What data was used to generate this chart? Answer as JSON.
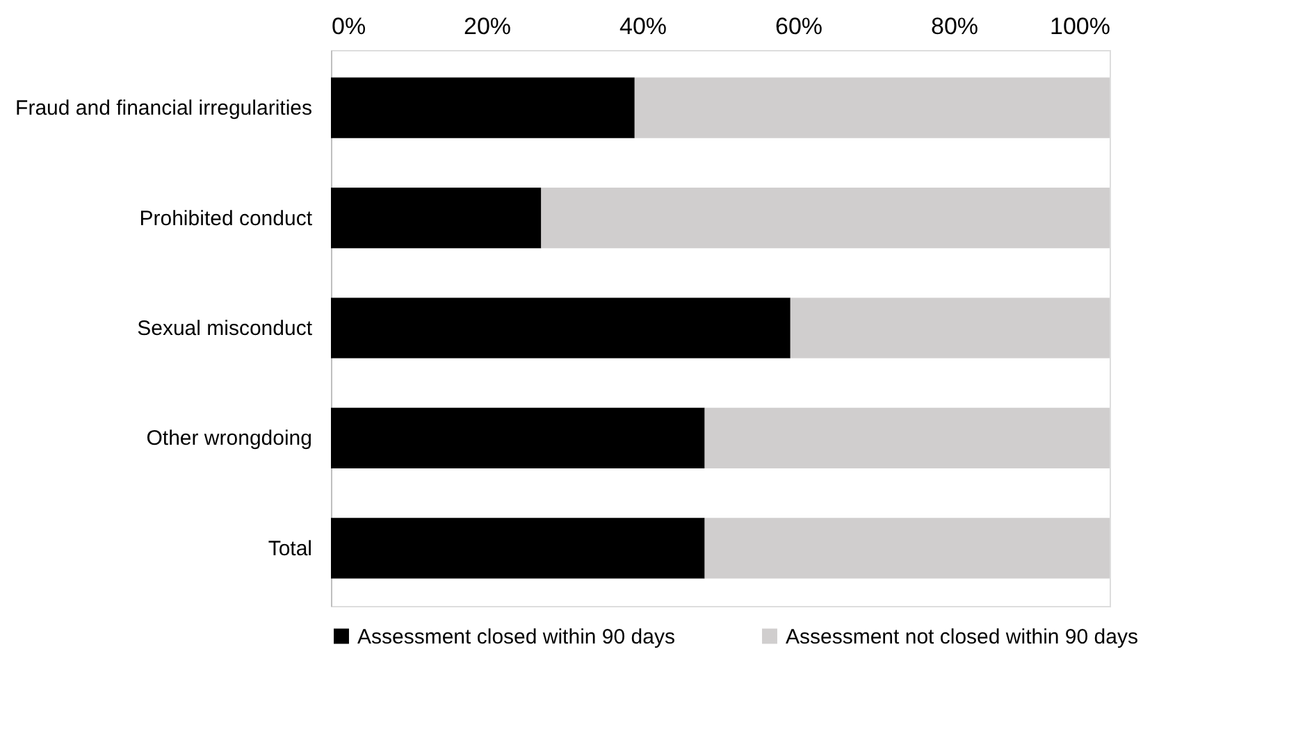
{
  "chart_data": {
    "type": "bar",
    "orientation": "horizontal",
    "stacked": true,
    "categories": [
      "Fraud and financial irregularities",
      "Prohibited conduct",
      "Sexual misconduct",
      "Other wrongdoing",
      "Total"
    ],
    "series": [
      {
        "name": "Assessment closed within 90 days",
        "color": "#000000",
        "values": [
          39,
          27,
          59,
          48,
          48
        ]
      },
      {
        "name": "Assessment not closed within 90 days",
        "color": "#d0cece",
        "values": [
          61,
          73,
          41,
          52,
          52
        ]
      }
    ],
    "xlim": [
      0,
      100
    ],
    "xticks": [
      {
        "value": 0,
        "label": "0%"
      },
      {
        "value": 20,
        "label": "20%"
      },
      {
        "value": 40,
        "label": "40%"
      },
      {
        "value": 60,
        "label": "60%"
      },
      {
        "value": 80,
        "label": "80%"
      },
      {
        "value": 100,
        "label": "100%"
      }
    ],
    "grid": false,
    "legend": "bottom"
  }
}
